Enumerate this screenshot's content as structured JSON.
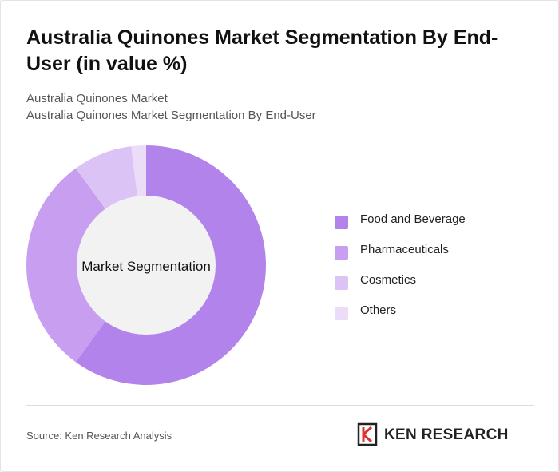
{
  "header": {
    "title": "Australia Quinones Market Segmentation By End-User (in value %)",
    "subtitle_1": "Australia Quinones Market",
    "subtitle_2": "Australia Quinones Market Segmentation By End-User"
  },
  "chart_data": {
    "type": "pie",
    "variant": "donut",
    "center_label": "Market Segmentation",
    "categories": [
      "Food and Beverage",
      "Pharmaceuticals",
      "Cosmetics",
      "Others"
    ],
    "values": [
      60,
      30,
      8,
      2
    ],
    "colors": [
      "#b383ec",
      "#c79ef0",
      "#dcc3f5",
      "#ebdcf8"
    ],
    "legend_position": "right"
  },
  "colors": {
    "center_fill": "#f2f2f2",
    "background": "#ffffff"
  },
  "footer": {
    "source": "Source: Ken Research Analysis",
    "logo_text": "KEN RESEARCH"
  }
}
